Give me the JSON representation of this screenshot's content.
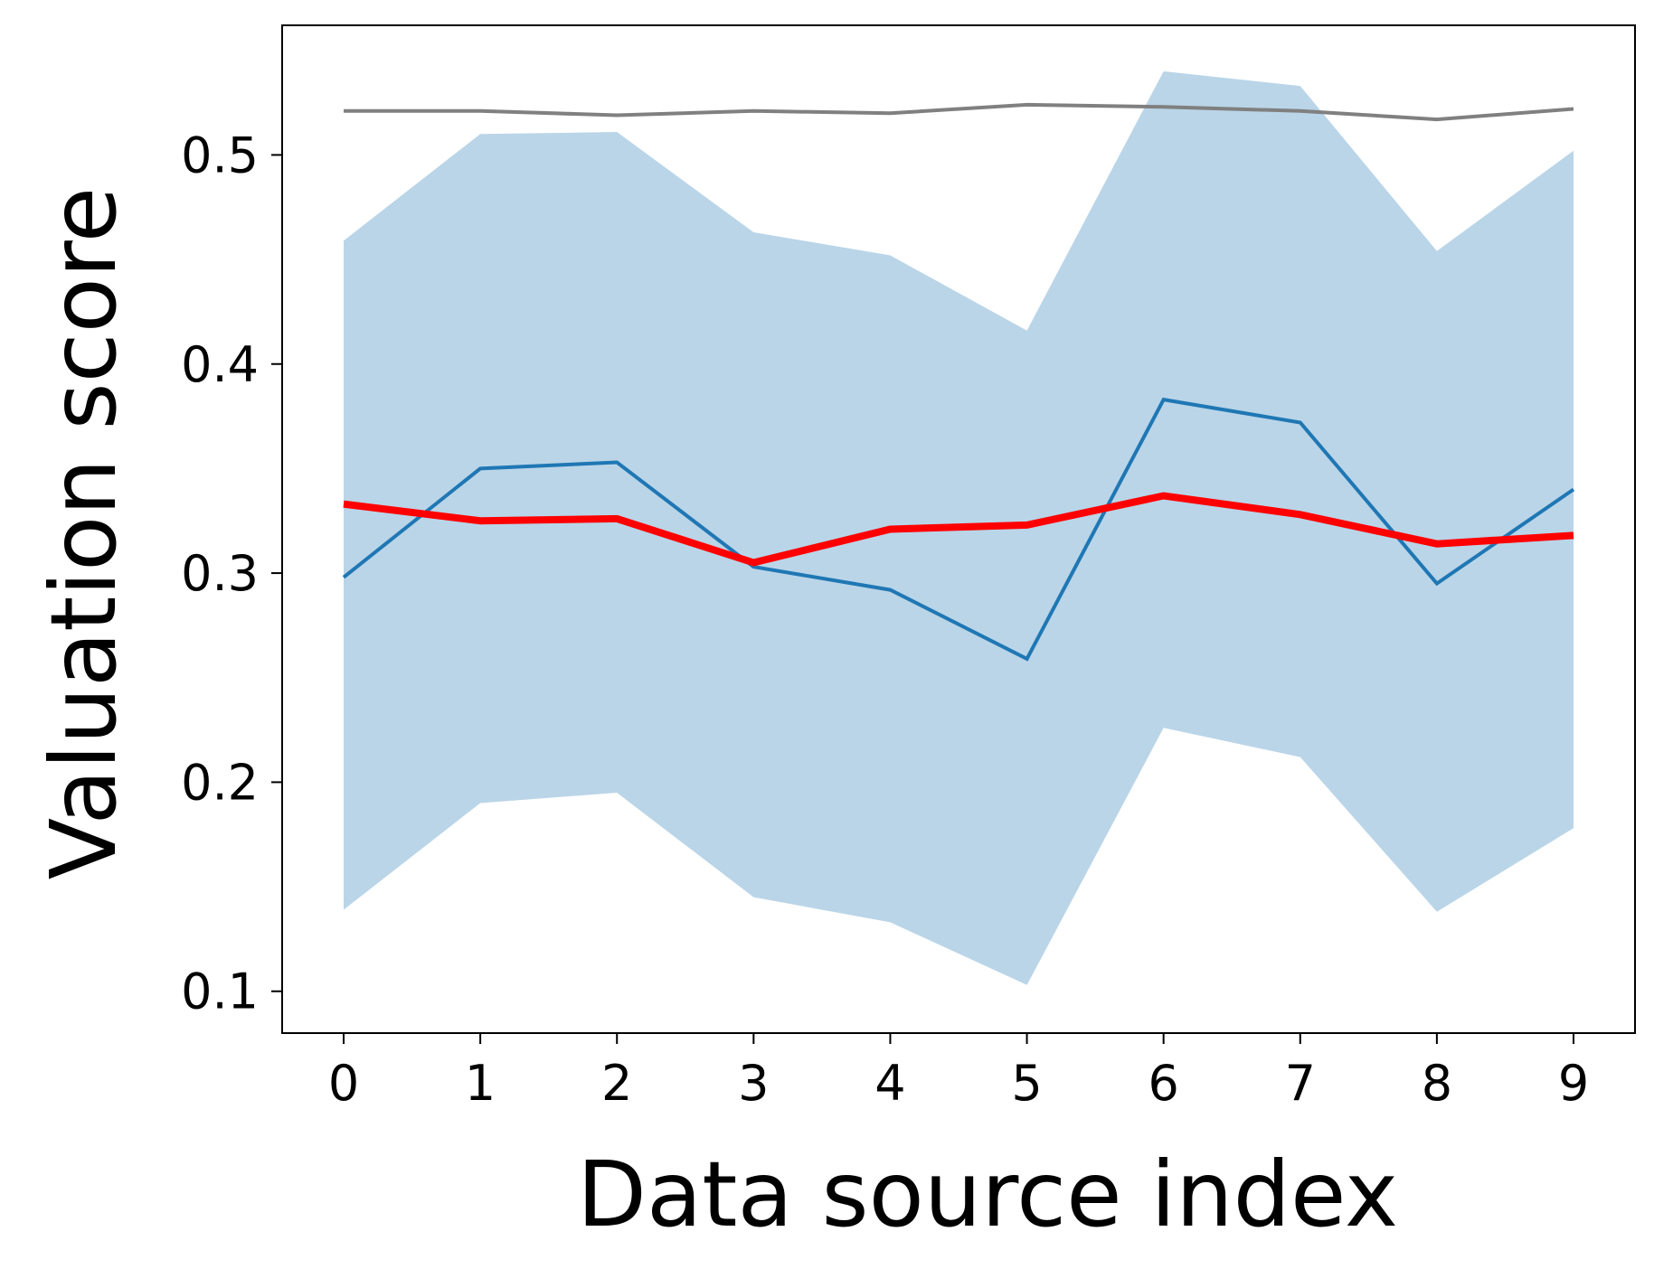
{
  "chart_data": {
    "type": "line",
    "title": "",
    "xlabel": "Data source index",
    "ylabel": "Valuation score",
    "xlim": [
      -0.45,
      9.45
    ],
    "ylim": [
      0.08,
      0.562
    ],
    "x": [
      0,
      1,
      2,
      3,
      4,
      5,
      6,
      7,
      8,
      9
    ],
    "x_tick_labels": [
      "0",
      "1",
      "2",
      "3",
      "4",
      "5",
      "6",
      "7",
      "8",
      "9"
    ],
    "y_ticks": [
      0.1,
      0.2,
      0.3,
      0.4,
      0.5
    ],
    "y_tick_labels": [
      "0.1",
      "0.2",
      "0.3",
      "0.4",
      "0.5"
    ],
    "grid": false,
    "legend": "none",
    "series": [
      {
        "kind": "band",
        "color": "#bad5e8",
        "lower": [
          0.139,
          0.19,
          0.195,
          0.145,
          0.133,
          0.103,
          0.226,
          0.212,
          0.138,
          0.178
        ],
        "upper": [
          0.459,
          0.51,
          0.511,
          0.463,
          0.452,
          0.416,
          0.54,
          0.533,
          0.454,
          0.502
        ]
      },
      {
        "kind": "line",
        "color": "#808080",
        "values": [
          0.521,
          0.521,
          0.519,
          0.521,
          0.52,
          0.524,
          0.523,
          0.521,
          0.517,
          0.522
        ]
      },
      {
        "kind": "line",
        "color": "#1f77b4",
        "values": [
          0.298,
          0.35,
          0.353,
          0.303,
          0.292,
          0.259,
          0.383,
          0.372,
          0.295,
          0.34
        ]
      },
      {
        "kind": "line",
        "color": "#ff0000",
        "values": [
          0.333,
          0.325,
          0.326,
          0.305,
          0.321,
          0.323,
          0.337,
          0.328,
          0.314,
          0.318
        ]
      }
    ]
  }
}
